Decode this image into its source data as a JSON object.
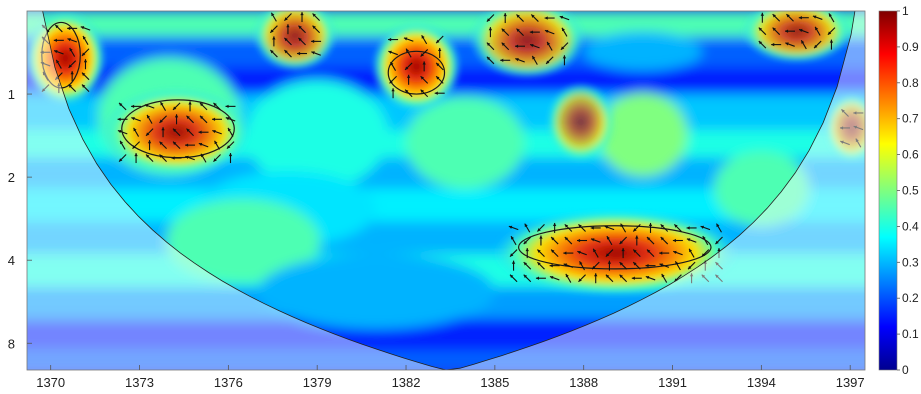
{
  "chart_data": {
    "type": "heatmap",
    "title": "",
    "xlabel": "",
    "ylabel": "",
    "x_ticks": [
      1370,
      1373,
      1376,
      1379,
      1382,
      1385,
      1388,
      1391,
      1394,
      1397
    ],
    "x_tick_labels": [
      "1370",
      "1373",
      "1376",
      "1379",
      "1382",
      "1385",
      "1388",
      "1391",
      "1394",
      "1397"
    ],
    "xlim": [
      1369.2,
      1397.5
    ],
    "y_scale": "log2",
    "y_ticks": [
      1,
      2,
      4,
      8
    ],
    "y_tick_labels": [
      "1",
      "2",
      "4",
      "8"
    ],
    "ylim_reversed": [
      0.5,
      10
    ],
    "colorbar": {
      "ticks": [
        0,
        0.1,
        0.2,
        0.3,
        0.4,
        0.5,
        0.6,
        0.7,
        0.8,
        0.9,
        1
      ],
      "tick_labels": [
        "0",
        "0.1",
        "0.2",
        "0.3",
        "0.4",
        "0.5",
        "0.6",
        "0.7",
        "0.8",
        "0.9",
        "1"
      ],
      "colormap": "jet"
    },
    "high_coherence_regions": [
      {
        "x": [
          1369.6,
          1371.4
        ],
        "period": [
          0.55,
          1.0
        ],
        "value": 0.95
      },
      {
        "x": [
          1372.2,
          1376.3
        ],
        "period": [
          1.05,
          1.8
        ],
        "value": 0.85
      },
      {
        "x": [
          1381.3,
          1383.4
        ],
        "period": [
          0.6,
          1.05
        ],
        "value": 0.92
      },
      {
        "x": [
          1385.4,
          1392.8
        ],
        "period": [
          2.9,
          4.9
        ],
        "value": 0.9
      },
      {
        "x": [
          1377.3,
          1379.2
        ],
        "period": [
          0.5,
          0.75
        ],
        "value": 0.7
      },
      {
        "x": [
          1384.6,
          1387.6
        ],
        "period": [
          0.5,
          0.8
        ],
        "value": 0.7
      },
      {
        "x": [
          1393.8,
          1396.6
        ],
        "period": [
          0.5,
          0.7
        ],
        "value": 0.72
      },
      {
        "x": [
          1387.2,
          1388.6
        ],
        "period": [
          1.0,
          1.6
        ],
        "value": 0.55
      },
      {
        "x": [
          1396.6,
          1397.5
        ],
        "period": [
          1.1,
          1.6
        ],
        "value": 0.6
      }
    ],
    "significance_contours": [
      {
        "x": [
          1369.7,
          1371.0
        ],
        "period": [
          0.55,
          0.95
        ]
      },
      {
        "x": [
          1372.4,
          1376.2
        ],
        "period": [
          1.05,
          1.7
        ]
      },
      {
        "x": [
          1381.4,
          1383.3
        ],
        "period": [
          0.7,
          1.0
        ]
      },
      {
        "x": [
          1385.8,
          1392.3
        ],
        "period": [
          3.0,
          4.3
        ]
      }
    ],
    "cone_of_influence": true,
    "phase_arrows": true,
    "grid": false,
    "legend": "none"
  }
}
